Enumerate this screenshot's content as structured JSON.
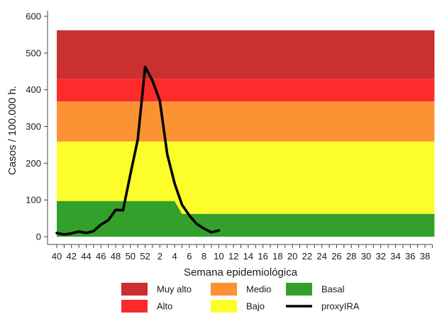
{
  "chart_data": {
    "type": "area",
    "xlabel": "Semana epidemiológica",
    "ylabel": "Casos / 100.000 h.",
    "ylim": [
      0,
      600
    ],
    "yticks": [
      0,
      100,
      200,
      300,
      400,
      500,
      600
    ],
    "xtick_labels": [
      "40",
      "42",
      "44",
      "46",
      "48",
      "50",
      "52",
      "2",
      "4",
      "6",
      "8",
      "10",
      "12",
      "14",
      "16",
      "18",
      "20",
      "22",
      "24",
      "26",
      "28",
      "30",
      "32",
      "34",
      "36",
      "38"
    ],
    "grid": false,
    "legend_position": "bottom",
    "weeks": [
      "40",
      "41",
      "42",
      "43",
      "44",
      "45",
      "46",
      "47",
      "48",
      "49",
      "50",
      "51",
      "52",
      "1",
      "2",
      "3",
      "4",
      "5",
      "6",
      "7",
      "8",
      "9",
      "10",
      "11",
      "12",
      "13",
      "14",
      "15",
      "16",
      "17",
      "18",
      "19",
      "20",
      "21",
      "22",
      "23",
      "24",
      "25",
      "26",
      "27",
      "28",
      "29",
      "30",
      "31",
      "32",
      "33",
      "34",
      "35",
      "36",
      "37",
      "38",
      "39"
    ],
    "threshold_bands": [
      {
        "name": "Muy alto",
        "color": "#c9302f",
        "lower": 430,
        "upper": 562
      },
      {
        "name": "Alto",
        "color": "#fd2b2b",
        "lower": 368,
        "upper": 430
      },
      {
        "name": "Medio",
        "color": "#fc9233",
        "lower": 259,
        "upper": 368
      },
      {
        "name": "Bajo",
        "color": "#fdfd2a",
        "lower": 0,
        "upper": 259
      },
      {
        "name": "Basal",
        "color": "#33a02c",
        "lower": 0,
        "upper_from_week": [
          {
            "week": "40",
            "value": 97
          },
          {
            "week": "3",
            "value": 97
          },
          {
            "week": "4",
            "value": 97
          },
          {
            "week": "5",
            "value": 62
          },
          {
            "week": "39",
            "value": 62
          }
        ]
      }
    ],
    "series": [
      {
        "name": "proxyIRA",
        "color": "#000000",
        "points": [
          {
            "week": "40",
            "value": 10
          },
          {
            "week": "41",
            "value": 6
          },
          {
            "week": "42",
            "value": 9
          },
          {
            "week": "43",
            "value": 14
          },
          {
            "week": "44",
            "value": 10
          },
          {
            "week": "45",
            "value": 15
          },
          {
            "week": "46",
            "value": 33
          },
          {
            "week": "47",
            "value": 45
          },
          {
            "week": "48",
            "value": 73
          },
          {
            "week": "49",
            "value": 72
          },
          {
            "week": "50",
            "value": 170
          },
          {
            "week": "51",
            "value": 265
          },
          {
            "week": "52",
            "value": 462
          },
          {
            "week": "1",
            "value": 425
          },
          {
            "week": "2",
            "value": 370
          },
          {
            "week": "3",
            "value": 225
          },
          {
            "week": "4",
            "value": 145
          },
          {
            "week": "5",
            "value": 87
          },
          {
            "week": "6",
            "value": 58
          },
          {
            "week": "7",
            "value": 35
          },
          {
            "week": "8",
            "value": 22
          },
          {
            "week": "9",
            "value": 12
          },
          {
            "week": "10",
            "value": 17
          }
        ]
      }
    ],
    "legend": [
      {
        "label": "Muy alto",
        "color": "#c9302f",
        "kind": "box"
      },
      {
        "label": "Medio",
        "color": "#fc9233",
        "kind": "box"
      },
      {
        "label": "Basal",
        "color": "#33a02c",
        "kind": "box"
      },
      {
        "label": "Alto",
        "color": "#fd2b2b",
        "kind": "box"
      },
      {
        "label": "Bajo",
        "color": "#fdfd2a",
        "kind": "box"
      },
      {
        "label": "proxyIRA",
        "color": "#000000",
        "kind": "line"
      }
    ]
  }
}
